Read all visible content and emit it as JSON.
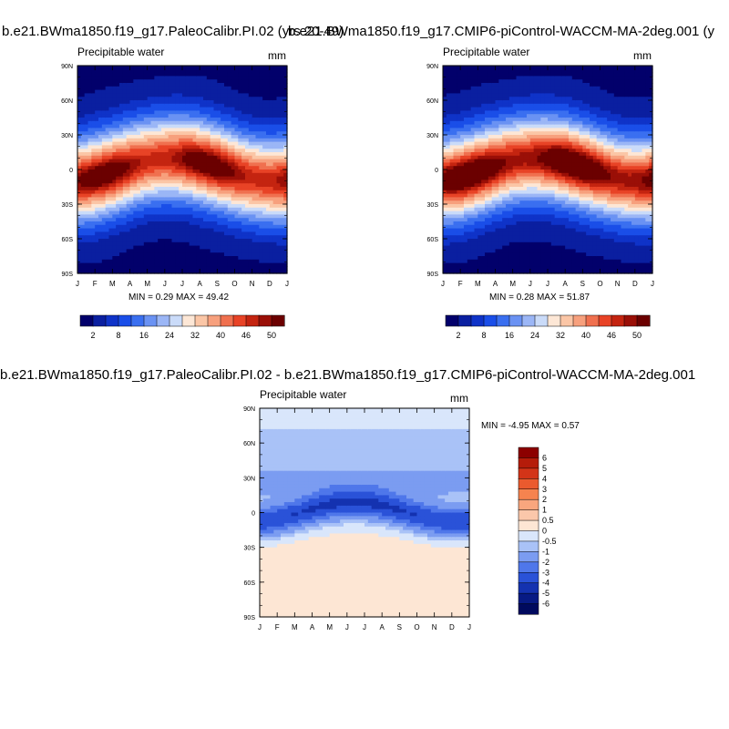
{
  "titles": {
    "top_left": "b.e21.BWma1850.f19_g17.PaleoCalibr.PI.02 (yrs 20-49)",
    "top_right": "b.e21.BWma1850.f19_g17.CMIP6-piControl-WACCM-MA-2deg.001 (y",
    "bottom": "b.e21.BWma1850.f19_g17.PaleoCalibr.PI.02 - b.e21.BWma1850.f19_g17.CMIP6-piControl-WACCM-MA-2deg.001"
  },
  "panels": {
    "top_left": {
      "subtitle": "Precipitable water",
      "units": "mm",
      "minmax": "MIN =   0.29 MAX =  49.42"
    },
    "top_right": {
      "subtitle": "Precipitable water",
      "units": "mm",
      "minmax": "MIN =   0.28 MAX =  51.87"
    },
    "bottom": {
      "subtitle": "Precipitable water",
      "units": "mm",
      "minmax": "MIN =  -4.95 MAX =   0.57"
    }
  },
  "chart_data": [
    {
      "type": "heatmap",
      "title": "Precipitable water",
      "units": "mm",
      "x": [
        "J",
        "F",
        "M",
        "A",
        "M",
        "J",
        "J",
        "A",
        "S",
        "O",
        "N",
        "D",
        "J"
      ],
      "y": [
        "90S",
        "60S",
        "30S",
        "0",
        "30N",
        "60N",
        "90N"
      ],
      "min": 0.29,
      "max": 49.42,
      "colorbar_labels": [
        "2",
        "8",
        "16",
        "24",
        "32",
        "40",
        "46",
        "50"
      ],
      "colors": [
        "#02006b",
        "#0a1fa0",
        "#0f33c8",
        "#1a4ee8",
        "#3a6ff0",
        "#6a92f3",
        "#9bb6f6",
        "#cadbf9",
        "#fde7d6",
        "#fbc6a6",
        "#f7a07d",
        "#f0704f",
        "#e84326",
        "#c42410",
        "#9a0f07",
        "#6b0000"
      ]
    },
    {
      "type": "heatmap",
      "title": "Precipitable water",
      "units": "mm",
      "x": [
        "J",
        "F",
        "M",
        "A",
        "M",
        "J",
        "J",
        "A",
        "S",
        "O",
        "N",
        "D",
        "J"
      ],
      "y": [
        "90S",
        "60S",
        "30S",
        "0",
        "30N",
        "60N",
        "90N"
      ],
      "min": 0.28,
      "max": 51.87,
      "colorbar_labels": [
        "2",
        "8",
        "16",
        "24",
        "32",
        "40",
        "46",
        "50"
      ],
      "colors": [
        "#02006b",
        "#0a1fa0",
        "#0f33c8",
        "#1a4ee8",
        "#3a6ff0",
        "#6a92f3",
        "#9bb6f6",
        "#cadbf9",
        "#fde7d6",
        "#fbc6a6",
        "#f7a07d",
        "#f0704f",
        "#e84326",
        "#c42410",
        "#9a0f07",
        "#6b0000"
      ]
    },
    {
      "type": "heatmap",
      "title": "Precipitable water",
      "units": "mm",
      "x": [
        "J",
        "F",
        "M",
        "A",
        "M",
        "J",
        "J",
        "A",
        "S",
        "O",
        "N",
        "D",
        "J"
      ],
      "y": [
        "90S",
        "60S",
        "30S",
        "0",
        "30N",
        "60N",
        "90N"
      ],
      "min": -4.95,
      "max": 0.57,
      "colorbar_labels": [
        "6",
        "5",
        "4",
        "3",
        "2",
        "1",
        "0.5",
        "0",
        "-0.5",
        "-1",
        "-2",
        "-3",
        "-4",
        "-5",
        "-6"
      ],
      "colors": [
        "#8c0000",
        "#b51c0a",
        "#d33418",
        "#eb5a2e",
        "#f6834f",
        "#f9a67e",
        "#fbc7aa",
        "#fde6d4",
        "#d9e6fb",
        "#a9c2f7",
        "#7b9cf1",
        "#4f77ea",
        "#2a52d8",
        "#1432b0",
        "#071a84",
        "#000a5e"
      ]
    }
  ]
}
